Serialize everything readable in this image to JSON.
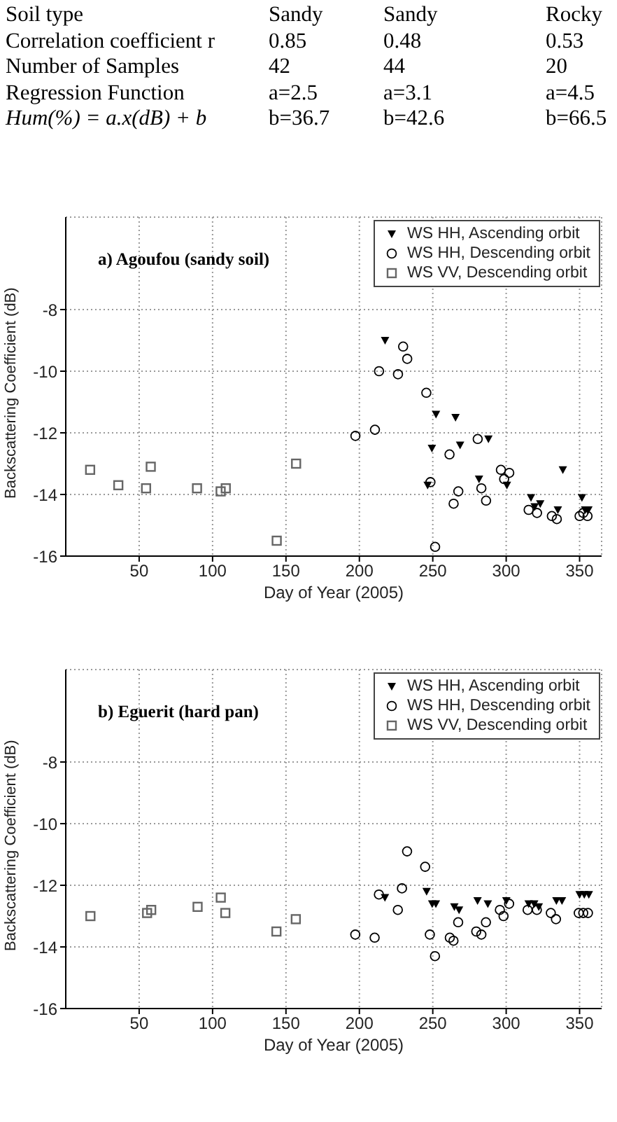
{
  "chart_data": [
    {
      "type": "other",
      "annotations": [
        "Soil type",
        "Sandy",
        "Sandy",
        "Rocky",
        "Correlation coefficient r",
        "0.85",
        "0.48",
        "0.53",
        "Number of Samples",
        "42",
        "44",
        "20",
        "Regression Function",
        "a=2.5",
        "a=3.1",
        "a=4.5",
        "Hum(%) = a.x(dB) + b",
        "b=36.7",
        "b=42.6",
        "b=66.5"
      ]
    },
    {
      "type": "scatter",
      "ylabel": "Backscattering Coefficient (dB)",
      "xlabel": "Day of Year (2005)",
      "annotations": [
        "a) Agoufou (sandy soil)"
      ],
      "xlim": [
        0,
        365
      ],
      "xticks": [
        50,
        100,
        150,
        200,
        250,
        300,
        350
      ],
      "ylim": [
        -16,
        -5
      ],
      "yticks": [
        -16,
        -14,
        -12,
        -10,
        -8
      ],
      "grid": true,
      "legend": "top right",
      "series": [
        {
          "name": "WS HH, Ascending orbit",
          "color": "#000000",
          "marker": "triangle",
          "x": [
            217.5,
            246.5,
            249.4,
            252.2,
            265.5,
            268.6,
            281.5,
            287.9,
            300.5,
            316.9,
            319.4,
            323.2,
            335.2,
            338.6,
            351.6,
            353.8,
            356
          ],
          "values": [
            -9.0,
            -13.7,
            -12.5,
            -11.4,
            -11.5,
            -12.4,
            -13.5,
            -12.2,
            -13.7,
            -14.1,
            -14.4,
            -14.3,
            -14.5,
            -13.2,
            -14.1,
            -14.5,
            -14.5
          ]
        },
        {
          "name": "WS HH, Descending orbit",
          "color": "#000000",
          "marker": "circle",
          "x": [
            197.3,
            210.6,
            213.4,
            226.3,
            229.8,
            232.6,
            245.6,
            248.4,
            251.6,
            261.4,
            264.2,
            267.4,
            280.6,
            283.1,
            286.3,
            296.4,
            298.6,
            302.1,
            315.3,
            321,
            331.1,
            334.5,
            350,
            352.5,
            355.4
          ],
          "values": [
            -12.1,
            -11.9,
            -10.0,
            -10.1,
            -9.2,
            -9.6,
            -10.7,
            -13.6,
            -15.7,
            -12.7,
            -14.3,
            -13.9,
            -12.2,
            -13.8,
            -14.2,
            -13.2,
            -13.5,
            -13.3,
            -14.5,
            -14.6,
            -14.7,
            -14.8,
            -14.7,
            -14.6,
            -14.7
          ]
        },
        {
          "name": "WS VV, Descending orbit",
          "color": "#666666",
          "marker": "square",
          "x": [
            16.6,
            35.8,
            54.7,
            57.9,
            89.4,
            105.5,
            109,
            143.7,
            156.9
          ],
          "values": [
            -13.2,
            -13.7,
            -13.8,
            -13.1,
            -13.8,
            -13.9,
            -13.8,
            -15.5,
            -13.0
          ]
        }
      ]
    },
    {
      "type": "scatter",
      "ylabel": "Backscattering Coefficient (dB)",
      "xlabel": "Day of Year (2005)",
      "annotations": [
        "b) Eguerit (hard pan)"
      ],
      "xlim": [
        0,
        365
      ],
      "xticks": [
        50,
        100,
        150,
        200,
        250,
        300,
        350
      ],
      "ylim": [
        -16,
        -5
      ],
      "yticks": [
        -16,
        -14,
        -12,
        -10,
        -8
      ],
      "grid": true,
      "legend": "top right",
      "series": [
        {
          "name": "WS HH, Ascending orbit",
          "color": "#000000",
          "marker": "triangle",
          "x": [
            217.4,
            245.8,
            249.6,
            252.1,
            264.7,
            267.9,
            280.5,
            287.5,
            300.1,
            315.3,
            319.1,
            322.2,
            334.2,
            338,
            350,
            353.2,
            356.3
          ],
          "values": [
            -12.4,
            -12.2,
            -12.6,
            -12.6,
            -12.7,
            -12.8,
            -12.5,
            -12.6,
            -12.5,
            -12.6,
            -12.6,
            -12.7,
            -12.5,
            -12.5,
            -12.3,
            -12.3,
            -12.3
          ]
        },
        {
          "name": "WS HH, Descending orbit",
          "color": "#000000",
          "marker": "circle",
          "x": [
            197.2,
            210.4,
            213.3,
            226.2,
            229,
            232.5,
            244.8,
            248,
            251.5,
            261.6,
            264.1,
            267.3,
            279.6,
            283.1,
            286.2,
            295.7,
            298.2,
            302,
            314.6,
            320.9,
            330.4,
            333.9,
            349.4,
            352.5,
            355.7
          ],
          "values": [
            -13.6,
            -13.7,
            -12.3,
            -12.8,
            -12.1,
            -10.9,
            -11.4,
            -13.6,
            -14.3,
            -13.7,
            -13.8,
            -13.2,
            -13.5,
            -13.6,
            -13.2,
            -12.8,
            -13.0,
            -12.6,
            -12.8,
            -12.8,
            -12.9,
            -13.1,
            -12.9,
            -12.9,
            -12.9
          ]
        },
        {
          "name": "WS VV, Descending orbit",
          "color": "#666666",
          "marker": "square",
          "x": [
            16.8,
            55.4,
            58.2,
            89.8,
            105.6,
            108.7,
            143.5,
            156.7
          ],
          "values": [
            -13.0,
            -12.9,
            -12.8,
            -12.7,
            -12.4,
            -12.9,
            -13.5,
            -13.1
          ]
        }
      ]
    }
  ]
}
